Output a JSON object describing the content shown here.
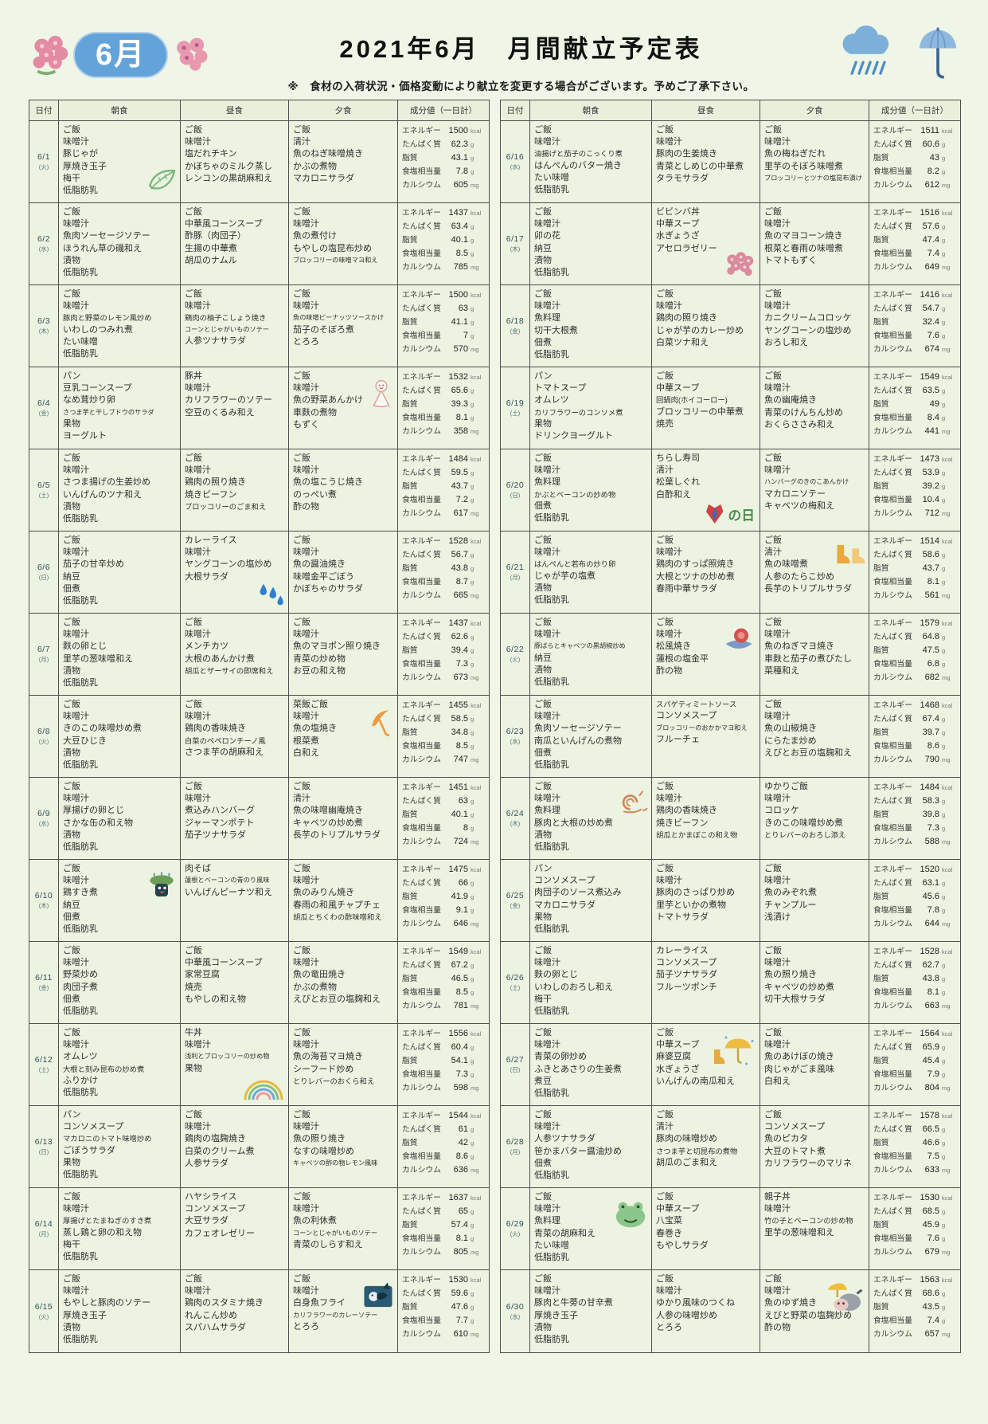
{
  "page": {
    "month_badge": "6月",
    "title": "2021年6月　月間献立予定表",
    "notice": "※　食材の入荷状況・価格変動により献立を変更する場合がございます。予めご了承下さい。",
    "paper_color": "#eff5e7",
    "badge_color": "#64a3d9"
  },
  "table": {
    "headers": {
      "date": "日付",
      "breakfast": "朝食",
      "lunch": "昼食",
      "dinner": "夕食",
      "nutrition": "成分値（一日計）"
    },
    "nutrition_labels": [
      "エネルギー",
      "たんぱく質",
      "脂質",
      "食塩相当量",
      "カルシウム"
    ],
    "nutrition_units": [
      "kcal",
      "g",
      "g",
      "g",
      "mg"
    ]
  },
  "days": [
    {
      "date": "6/1",
      "weekday": "(火)",
      "breakfast": [
        "ご飯",
        "味噌汁",
        "豚じゃが",
        "厚焼き玉子",
        "梅干",
        "低脂肪乳"
      ],
      "lunch": [
        "ご飯",
        "味噌汁",
        "塩だれチキン",
        "かぼちゃのミルク蒸し",
        "レンコンの黒胡麻和え"
      ],
      "dinner": [
        "ご飯",
        "清汁",
        "魚のねぎ味噌焼き",
        "かぶの煮物",
        "マカロニサラダ"
      ],
      "nutrition": [
        "1500",
        "62.3",
        "43.1",
        "7.8",
        "605"
      ],
      "icon": {
        "name": "leaf",
        "cell": "breakfast"
      }
    },
    {
      "date": "6/2",
      "weekday": "(水)",
      "breakfast": [
        "ご飯",
        "味噌汁",
        "魚肉ソーセージソテー",
        "ほうれん草の磯和え",
        "漬物",
        "低脂肪乳"
      ],
      "lunch": [
        "ご飯",
        "中華風コーンスープ",
        "酢豚（肉団子）",
        "生揚の中華煮",
        "胡瓜のナムル"
      ],
      "dinner": [
        "ご飯",
        "味噌汁",
        "魚の煮付け",
        "もやしの塩昆布炒め",
        "ブロッコリーの味噌マヨ和え"
      ],
      "nutrition": [
        "1437",
        "63.4",
        "40.1",
        "8.5",
        "785"
      ]
    },
    {
      "date": "6/3",
      "weekday": "(木)",
      "breakfast": [
        "ご飯",
        "味噌汁",
        "豚肉と野菜のレモン風炒め",
        "いわしのつみれ煮",
        "たい味噌",
        "低脂肪乳"
      ],
      "lunch": [
        "ご飯",
        "味噌汁",
        "鶏肉の柚子こしょう焼き",
        "コーンとじゃがいものソテー",
        "人参ツナサラダ"
      ],
      "dinner": [
        "ご飯",
        "味噌汁",
        "魚の味噌ピーナッツソースかけ",
        "茄子のそぼろ煮",
        "とろろ"
      ],
      "nutrition": [
        "1500",
        "63",
        "41.1",
        "7",
        "570"
      ]
    },
    {
      "date": "6/4",
      "weekday": "(金)",
      "breakfast": [
        "パン",
        "豆乳コーンスープ",
        "なめ茸炒り卵",
        "さつま芋と干しブドウのサラダ",
        "果物",
        "ヨーグルト"
      ],
      "lunch": [
        "豚丼",
        "味噌汁",
        "カリフラワーのソテー",
        "空豆のくるみ和え"
      ],
      "dinner": [
        "ご飯",
        "味噌汁",
        "魚の野菜あんかけ",
        "車麩の煮物",
        "もずく"
      ],
      "nutrition": [
        "1532",
        "65.6",
        "39.3",
        "8.1",
        "358"
      ],
      "icon": {
        "name": "teruteru",
        "cell": "dinner",
        "pos": "top"
      }
    },
    {
      "date": "6/5",
      "weekday": "(土)",
      "breakfast": [
        "ご飯",
        "味噌汁",
        "さつま揚げの生姜炒め",
        "いんげんのツナ和え",
        "漬物",
        "低脂肪乳"
      ],
      "lunch": [
        "ご飯",
        "味噌汁",
        "鶏肉の照り焼き",
        "焼きビーフン",
        "ブロッコリーのごま和え"
      ],
      "dinner": [
        "ご飯",
        "味噌汁",
        "魚の塩こうじ焼き",
        "のっぺい煮",
        "酢の物"
      ],
      "nutrition": [
        "1484",
        "59.5",
        "43.7",
        "7.2",
        "617"
      ]
    },
    {
      "date": "6/6",
      "weekday": "(日)",
      "breakfast": [
        "ご飯",
        "味噌汁",
        "茄子の甘辛炒め",
        "納豆",
        "佃煮",
        "低脂肪乳"
      ],
      "lunch": [
        "カレーライス",
        "味噌汁",
        "ヤングコーンの塩炒め",
        "大根サラダ"
      ],
      "dinner": [
        "ご飯",
        "味噌汁",
        "魚の醤油焼き",
        "味噌金平ごぼう",
        "かぼちゃのサラダ"
      ],
      "nutrition": [
        "1528",
        "56.7",
        "43.8",
        "8.7",
        "665"
      ],
      "icon": {
        "name": "raindrops",
        "cell": "lunch"
      }
    },
    {
      "date": "6/7",
      "weekday": "(月)",
      "breakfast": [
        "ご飯",
        "味噌汁",
        "麩の卵とじ",
        "里芋の葱味噌和え",
        "漬物",
        "低脂肪乳"
      ],
      "lunch": [
        "ご飯",
        "味噌汁",
        "メンチカツ",
        "大根のあんかけ煮",
        "胡瓜とザーサイの即席和え"
      ],
      "dinner": [
        "ご飯",
        "味噌汁",
        "魚のマヨポン照り焼き",
        "青菜の炒め物",
        "お豆の和え物"
      ],
      "nutrition": [
        "1437",
        "62.6",
        "39.4",
        "7.3",
        "673"
      ]
    },
    {
      "date": "6/8",
      "weekday": "(火)",
      "breakfast": [
        "ご飯",
        "味噌汁",
        "きのこの味噌炒め煮",
        "大豆ひじき",
        "漬物",
        "低脂肪乳"
      ],
      "lunch": [
        "ご飯",
        "味噌汁",
        "鶏肉の香味焼き",
        "白菜のペペロンチーノ風",
        "さつま芋の胡麻和え"
      ],
      "dinner": [
        "菜飯ご飯",
        "味噌汁",
        "魚の塩焼き",
        "根菜煮",
        "白和え"
      ],
      "nutrition": [
        "1455",
        "58.5",
        "34.8",
        "8.5",
        "747"
      ],
      "icon": {
        "name": "umbrella-orange",
        "cell": "dinner",
        "pos": "top"
      }
    },
    {
      "date": "6/9",
      "weekday": "(水)",
      "breakfast": [
        "ご飯",
        "味噌汁",
        "厚揚げの卵とじ",
        "さかな缶の和え物",
        "漬物",
        "低脂肪乳"
      ],
      "lunch": [
        "ご飯",
        "味噌汁",
        "煮込みハンバーグ",
        "ジャーマンポテト",
        "茄子ツナサラダ"
      ],
      "dinner": [
        "ご飯",
        "清汁",
        "魚の味噌幽庵焼き",
        "キャベツの炒め煮",
        "長芋のトリプルサラダ"
      ],
      "nutrition": [
        "1451",
        "63",
        "40.1",
        "8",
        "724"
      ]
    },
    {
      "date": "6/10",
      "weekday": "(木)",
      "breakfast": [
        "ご飯",
        "味噌汁",
        "鶏すき煮",
        "納豆",
        "佃煮",
        "低脂肪乳"
      ],
      "lunch": [
        "肉そば",
        "蓮根とベーコンの青のり風味",
        "いんげんピーナツ和え"
      ],
      "dinner": [
        "ご飯",
        "味噌汁",
        "魚のみりん焼き",
        "春雨の和風チャプチェ",
        "胡瓜とちくわの酢味噌和え"
      ],
      "nutrition": [
        "1475",
        "66",
        "41.9",
        "9.1",
        "646"
      ],
      "icon": {
        "name": "frog-rain",
        "cell": "breakfast",
        "pos": "top"
      }
    },
    {
      "date": "6/11",
      "weekday": "(金)",
      "breakfast": [
        "ご飯",
        "味噌汁",
        "野菜炒め",
        "肉団子煮",
        "佃煮",
        "低脂肪乳"
      ],
      "lunch": [
        "ご飯",
        "中華風コーンスープ",
        "家常豆腐",
        "焼売",
        "もやしの和え物"
      ],
      "dinner": [
        "ご飯",
        "味噌汁",
        "魚の竜田焼き",
        "かぶの煮物",
        "えびとお豆の塩麹和え"
      ],
      "nutrition": [
        "1549",
        "67.2",
        "46.5",
        "8.5",
        "781"
      ]
    },
    {
      "date": "6/12",
      "weekday": "(土)",
      "breakfast": [
        "ご飯",
        "味噌汁",
        "オムレツ",
        "大根と刻み昆布の炒め煮",
        "ふりかけ",
        "低脂肪乳"
      ],
      "lunch": [
        "牛丼",
        "味噌汁",
        "浅利とブロッコリーの炒め物",
        "果物"
      ],
      "dinner": [
        "ご飯",
        "味噌汁",
        "魚の海苔マヨ焼き",
        "シーフード炒め",
        "とりレバーのおくら和え"
      ],
      "nutrition": [
        "1556",
        "60.4",
        "54.1",
        "7.3",
        "598"
      ],
      "icon": {
        "name": "rainbow",
        "cell": "lunch"
      }
    },
    {
      "date": "6/13",
      "weekday": "(日)",
      "breakfast": [
        "パン",
        "コンソメスープ",
        "マカロニのトマト味噌炒め",
        "ごぼうサラダ",
        "果物",
        "低脂肪乳"
      ],
      "lunch": [
        "ご飯",
        "味噌汁",
        "鶏肉の塩麹焼き",
        "白菜のクリーム煮",
        "人参サラダ"
      ],
      "dinner": [
        "ご飯",
        "味噌汁",
        "魚の照り焼き",
        "なすの味噌炒め",
        "キャベツの酢の物レモン風味"
      ],
      "nutrition": [
        "1544",
        "61",
        "42",
        "8.6",
        "636"
      ]
    },
    {
      "date": "6/14",
      "weekday": "(月)",
      "breakfast": [
        "ご飯",
        "味噌汁",
        "厚揚げとたまねぎのすき煮",
        "蒸し鶏と卵の和え物",
        "梅干",
        "低脂肪乳"
      ],
      "lunch": [
        "ハヤシライス",
        "コンソメスープ",
        "大豆サラダ",
        "カフェオレゼリー"
      ],
      "dinner": [
        "ご飯",
        "味噌汁",
        "魚の利休煮",
        "コーンとじゃがいものソテー",
        "青菜のしらす和え"
      ],
      "nutrition": [
        "1637",
        "65",
        "57.4",
        "8.1",
        "805"
      ]
    },
    {
      "date": "6/15",
      "weekday": "(火)",
      "breakfast": [
        "ご飯",
        "味噌汁",
        "もやしと豚肉のソテー",
        "厚焼き玉子",
        "漬物",
        "低脂肪乳"
      ],
      "lunch": [
        "ご飯",
        "味噌汁",
        "鶏肉のスタミナ焼き",
        "れんこん炒め",
        "スパハムサラダ"
      ],
      "dinner": [
        "ご飯",
        "味噌汁",
        "白身魚フライ",
        "カリフラワーのカレーソテー",
        "とろろ"
      ],
      "nutrition": [
        "1530",
        "59.6",
        "47.6",
        "7.7",
        "610"
      ],
      "icon": {
        "name": "rain-bird",
        "cell": "dinner",
        "pos": "top"
      }
    },
    {
      "date": "6/16",
      "weekday": "(水)",
      "breakfast": [
        "ご飯",
        "味噌汁",
        "油揚げと茄子のこっくり煮",
        "はんぺんのバター焼き",
        "たい味噌",
        "低脂肪乳"
      ],
      "lunch": [
        "ご飯",
        "味噌汁",
        "豚肉の生姜焼き",
        "青菜としめじの中華煮",
        "タラモサラダ"
      ],
      "dinner": [
        "ご飯",
        "味噌汁",
        "魚の梅ねぎだれ",
        "里芋のそぼろ味噌煮",
        "ブロッコリーとツナの塩昆布漬け"
      ],
      "nutrition": [
        "1511",
        "60.6",
        "43",
        "8.2",
        "612"
      ]
    },
    {
      "date": "6/17",
      "weekday": "(木)",
      "breakfast": [
        "ご飯",
        "味噌汁",
        "卯の花",
        "納豆",
        "漬物",
        "低脂肪乳"
      ],
      "lunch": [
        "ビビンバ丼",
        "中華スープ",
        "水ぎょうざ",
        "アセロラゼリー"
      ],
      "dinner": [
        "ご飯",
        "味噌汁",
        "魚のマヨコーン焼き",
        "根菜と春雨の味噌煮",
        "トマトもずく"
      ],
      "nutrition": [
        "1516",
        "57.6",
        "47.4",
        "7.4",
        "649"
      ],
      "icon": {
        "name": "hydrangea",
        "cell": "lunch"
      }
    },
    {
      "date": "6/18",
      "weekday": "(金)",
      "breakfast": [
        "ご飯",
        "味噌汁",
        "魚料理",
        "切干大根煮",
        "佃煮",
        "低脂肪乳"
      ],
      "lunch": [
        "ご飯",
        "味噌汁",
        "鶏肉の照り焼き",
        "じゃが芋のカレー炒め",
        "白菜ツナ和え"
      ],
      "dinner": [
        "ご飯",
        "味噌汁",
        "カニクリームコロッケ",
        "ヤングコーンの塩炒め",
        "おろし和え"
      ],
      "nutrition": [
        "1416",
        "54.7",
        "32.4",
        "7.6",
        "674"
      ]
    },
    {
      "date": "6/19",
      "weekday": "(土)",
      "breakfast": [
        "パン",
        "トマトスープ",
        "オムレツ",
        "カリフラワーのコンソメ煮",
        "果物",
        "ドリンクヨーグルト"
      ],
      "lunch": [
        "ご飯",
        "中華スープ",
        "回鍋肉(ホイコーロー)",
        "ブロッコリーの中華煮",
        "焼売"
      ],
      "dinner": [
        "ご飯",
        "味噌汁",
        "魚の幽庵焼き",
        "青菜のけんちん炒め",
        "おくらささみ和え"
      ],
      "nutrition": [
        "1549",
        "63.5",
        "49",
        "8.4",
        "441"
      ]
    },
    {
      "date": "6/20",
      "weekday": "(日)",
      "breakfast": [
        "ご飯",
        "味噌汁",
        "魚料理",
        "かぶとベーコンの炒め物",
        "佃煮",
        "低脂肪乳"
      ],
      "lunch": [
        "ちらし寿司",
        "清汁",
        "松葉しぐれ",
        "白酢和え"
      ],
      "dinner": [
        "ご飯",
        "味噌汁",
        "ハンバーグのきのこあんかけ",
        "マカロニソテー",
        "キャベツの梅和え"
      ],
      "nutrition": [
        "1473",
        "53.9",
        "39.2",
        "10.4",
        "712"
      ],
      "icon": {
        "name": "fathers-day",
        "cell": "lunch"
      }
    },
    {
      "date": "6/21",
      "weekday": "(月)",
      "breakfast": [
        "ご飯",
        "味噌汁",
        "はんぺんと若布の炒り卵",
        "じゃが芋の塩煮",
        "漬物",
        "低脂肪乳"
      ],
      "lunch": [
        "ご飯",
        "味噌汁",
        "鶏肉のすっぱ照焼き",
        "大根とツナの炒め煮",
        "春雨中華サラダ"
      ],
      "dinner": [
        "ご飯",
        "清汁",
        "魚の味噌煮",
        "人参のたらこ炒め",
        "長芋のトリプルサラダ"
      ],
      "nutrition": [
        "1514",
        "58.6",
        "43.7",
        "8.1",
        "561"
      ],
      "icon": {
        "name": "boots",
        "cell": "dinner",
        "pos": "top"
      }
    },
    {
      "date": "6/22",
      "weekday": "(火)",
      "breakfast": [
        "ご飯",
        "味噌汁",
        "豚ばらとキャベツの黒胡椒炒め",
        "納豆",
        "漬物",
        "低脂肪乳"
      ],
      "lunch": [
        "ご飯",
        "味噌汁",
        "松風焼き",
        "蓮根の塩金平",
        "酢の物"
      ],
      "dinner": [
        "ご飯",
        "味噌汁",
        "魚のねぎマヨ焼き",
        "車麩と茄子の煮びたし",
        "菜種和え"
      ],
      "nutrition": [
        "1579",
        "64.8",
        "47.5",
        "6.8",
        "682"
      ],
      "icon": {
        "name": "snail-leaf",
        "cell": "lunch",
        "pos": "top"
      }
    },
    {
      "date": "6/23",
      "weekday": "(水)",
      "breakfast": [
        "ご飯",
        "味噌汁",
        "魚肉ソーセージソテー",
        "南瓜といんげんの煮物",
        "佃煮",
        "低脂肪乳"
      ],
      "lunch": [
        "スパゲティミートソース",
        "コンソメスープ",
        "ブロッコリーのおかかマヨ和え",
        "フルーチェ"
      ],
      "dinner": [
        "ご飯",
        "味噌汁",
        "魚の山椒焼き",
        "にらたま炒め",
        "えびとお豆の塩麹和え"
      ],
      "nutrition": [
        "1468",
        "67.4",
        "39.7",
        "8.6",
        "790"
      ]
    },
    {
      "date": "6/24",
      "weekday": "(木)",
      "breakfast": [
        "ご飯",
        "味噌汁",
        "魚料理",
        "豚肉と大根の炒め煮",
        "漬物",
        "低脂肪乳"
      ],
      "lunch": [
        "ご飯",
        "味噌汁",
        "鶏肉の香味焼き",
        "焼きビーフン",
        "胡瓜とかまぼこの和え物"
      ],
      "dinner": [
        "ゆかりご飯",
        "味噌汁",
        "コロッケ",
        "きのこの味噌炒め煮",
        "とりレバーのおろし添え"
      ],
      "nutrition": [
        "1484",
        "58.3",
        "39.8",
        "7.3",
        "588"
      ],
      "icon": {
        "name": "snail",
        "cell": "breakfast",
        "pos": "top"
      }
    },
    {
      "date": "6/25",
      "weekday": "(金)",
      "breakfast": [
        "パン",
        "コンソメスープ",
        "肉団子のソース煮込み",
        "マカロニサラダ",
        "果物",
        "低脂肪乳"
      ],
      "lunch": [
        "ご飯",
        "味噌汁",
        "豚肉のさっぱり炒め",
        "里芋といかの煮物",
        "トマトサラダ"
      ],
      "dinner": [
        "ご飯",
        "味噌汁",
        "魚のみぞれ煮",
        "チャンプルー",
        "浅漬け"
      ],
      "nutrition": [
        "1520",
        "63.1",
        "45.6",
        "7.8",
        "644"
      ]
    },
    {
      "date": "6/26",
      "weekday": "(土)",
      "breakfast": [
        "ご飯",
        "味噌汁",
        "麩の卵とじ",
        "いわしのおろし和え",
        "梅干",
        "低脂肪乳"
      ],
      "lunch": [
        "カレーライス",
        "コンソメスープ",
        "茄子ツナサラダ",
        "フルーツポンチ"
      ],
      "dinner": [
        "ご飯",
        "味噌汁",
        "魚の照り焼き",
        "キャベツの炒め煮",
        "切干大根サラダ"
      ],
      "nutrition": [
        "1528",
        "62.7",
        "43.8",
        "8.1",
        "663"
      ]
    },
    {
      "date": "6/27",
      "weekday": "(日)",
      "breakfast": [
        "ご飯",
        "味噌汁",
        "青菜の卵炒め",
        "ふきとあさりの生姜煮",
        "煮豆",
        "低脂肪乳"
      ],
      "lunch": [
        "ご飯",
        "中華スープ",
        "麻婆豆腐",
        "水ぎょうざ",
        "いんげんの南瓜和え"
      ],
      "dinner": [
        "ご飯",
        "味噌汁",
        "魚のあけぼの焼き",
        "肉じゃがごま風味",
        "白和え"
      ],
      "nutrition": [
        "1564",
        "65.9",
        "45.4",
        "7.9",
        "804"
      ],
      "icon": {
        "name": "umbrella-boots",
        "cell": "lunch",
        "pos": "top"
      }
    },
    {
      "date": "6/28",
      "weekday": "(月)",
      "breakfast": [
        "ご飯",
        "味噌汁",
        "人参ツナサラダ",
        "笹かまバター醤油炒め",
        "佃煮",
        "低脂肪乳"
      ],
      "lunch": [
        "ご飯",
        "清汁",
        "豚肉の味噌炒め",
        "さつま芋と切昆布の煮物",
        "胡瓜のごま和え"
      ],
      "dinner": [
        "ご飯",
        "コンソメスープ",
        "魚のピカタ",
        "大豆のトマト煮",
        "カリフラワーのマリネ"
      ],
      "nutrition": [
        "1578",
        "66.5",
        "46.6",
        "7.5",
        "633"
      ]
    },
    {
      "date": "6/29",
      "weekday": "(火)",
      "breakfast": [
        "ご飯",
        "味噌汁",
        "魚料理",
        "青菜の胡麻和え",
        "たい味噌",
        "低脂肪乳"
      ],
      "lunch": [
        "ご飯",
        "中華スープ",
        "八宝菜",
        "春巻き",
        "もやしサラダ"
      ],
      "dinner": [
        "親子丼",
        "味噌汁",
        "竹の子とベーコンの炒め物",
        "里芋の葱味噌和え"
      ],
      "nutrition": [
        "1530",
        "68.5",
        "45.9",
        "7.6",
        "679"
      ],
      "icon": {
        "name": "frog",
        "cell": "breakfast",
        "pos": "top"
      }
    },
    {
      "date": "6/30",
      "weekday": "(水)",
      "breakfast": [
        "ご飯",
        "味噌汁",
        "豚肉と牛蒡の甘辛煮",
        "厚焼き玉子",
        "漬物",
        "低脂肪乳"
      ],
      "lunch": [
        "ご飯",
        "味噌汁",
        "ゆかり風味のつくね",
        "人参の味噌炒め",
        "とろろ"
      ],
      "dinner": [
        "ご飯",
        "味噌汁",
        "魚のゆず焼き",
        "えびと野菜の塩麹炒め",
        "酢の物"
      ],
      "nutrition": [
        "1563",
        "68.6",
        "43.5",
        "7.4",
        "657"
      ],
      "icon": {
        "name": "cow-umbrella",
        "cell": "dinner",
        "pos": "top"
      }
    }
  ]
}
